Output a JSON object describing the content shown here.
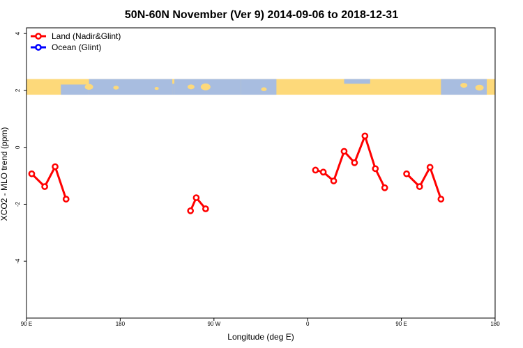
{
  "chart_data": {
    "type": "line",
    "title": "50N-60N November (Ver 9)   2014-09-06 to 2018-12-31",
    "xlabel": "Longitude (deg E)",
    "ylabel": "XCO2 - MLO trend (ppm)",
    "xlim": [
      90,
      540
    ],
    "ylim": [
      -6,
      4.2
    ],
    "x_ticks": [
      {
        "value": 90,
        "label": "90 E"
      },
      {
        "value": 180,
        "label": "180"
      },
      {
        "value": 270,
        "label": "90 W"
      },
      {
        "value": 360,
        "label": "0"
      },
      {
        "value": 450,
        "label": "90 E"
      },
      {
        "value": 540,
        "label": "180"
      }
    ],
    "y_ticks": [
      {
        "value": 4,
        "label": "4"
      },
      {
        "value": 2,
        "label": "2"
      },
      {
        "value": 0,
        "label": "0"
      },
      {
        "value": -2,
        "label": "-2"
      },
      {
        "value": -4,
        "label": "-4"
      }
    ],
    "legend": {
      "position": "top-left",
      "entries": [
        {
          "label": "Land (Nadir&Glint)",
          "color": "#ff0000"
        },
        {
          "label": "Ocean (Glint)",
          "color": "#0000ff"
        }
      ]
    },
    "map_strip": {
      "y_range": [
        1.85,
        2.4
      ],
      "ocean_color": "#a8bde0",
      "land_color": "#fdd97a"
    },
    "series": [
      {
        "name": "Land (Nadir&Glint)",
        "color": "#ff0000",
        "segments": [
          [
            [
              95,
              -0.93
            ],
            [
              107.5,
              -1.38
            ],
            [
              117.5,
              -0.68
            ],
            [
              128,
              -1.82
            ]
          ],
          [
            [
              247.5,
              -2.23
            ],
            [
              253,
              -1.77
            ],
            [
              262,
              -2.16
            ]
          ],
          [
            [
              367.5,
              -0.8
            ],
            [
              375,
              -0.87
            ],
            [
              385,
              -1.18
            ],
            [
              395,
              -0.14
            ],
            [
              405,
              -0.54
            ],
            [
              415,
              0.4
            ],
            [
              425,
              -0.75
            ],
            [
              434,
              -1.42
            ]
          ],
          [
            [
              455,
              -0.93
            ],
            [
              467.5,
              -1.38
            ],
            [
              477.5,
              -0.7
            ],
            [
              488,
              -1.82
            ]
          ]
        ]
      },
      {
        "name": "Ocean (Glint)",
        "color": "#0000ff",
        "segments": []
      }
    ]
  }
}
